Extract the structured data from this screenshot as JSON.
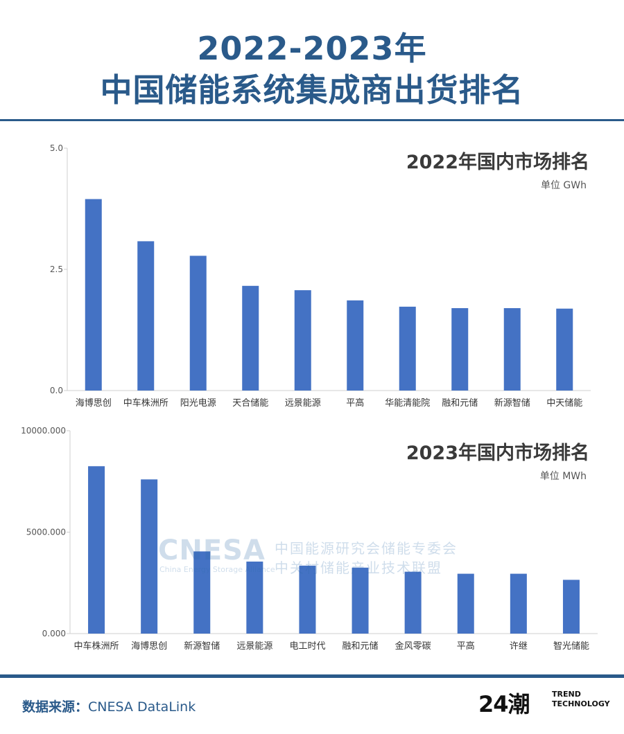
{
  "title": {
    "line1": "2022-2023年",
    "line2": "中国储能系统集成商出货排名"
  },
  "chart_data": [
    {
      "type": "bar",
      "title": "2022年国内市场排名",
      "unit": "单位 GWh",
      "categories": [
        "海博思创",
        "中车株洲所",
        "阳光电源",
        "天合储能",
        "远景能源",
        "平高",
        "华能清能院",
        "融和元储",
        "新源智储",
        "中天储能"
      ],
      "values": [
        3.95,
        3.08,
        2.78,
        2.16,
        2.07,
        1.86,
        1.73,
        1.7,
        1.7,
        1.69
      ],
      "ylim": [
        0,
        5
      ],
      "yticks": [
        "0.0",
        "2.5",
        "5.0"
      ],
      "grid": false,
      "color": "#4472c4"
    },
    {
      "type": "bar",
      "title": "2023年国内市场排名",
      "unit": "单位 MWh",
      "categories": [
        "中车株洲所",
        "海博思创",
        "新源智储",
        "远景能源",
        "电工时代",
        "融和元储",
        "金风零碳",
        "平高",
        "许继",
        "智光储能"
      ],
      "values": [
        8250,
        7600,
        4050,
        3550,
        3350,
        3250,
        3050,
        2950,
        2950,
        2650
      ],
      "ylim": [
        0,
        10000
      ],
      "yticks": [
        "0.000",
        "5000.000",
        "10000.000"
      ],
      "grid": false,
      "color": "#4472c4"
    }
  ],
  "watermark": {
    "brand": "CNESA",
    "subtitle": "China Energy Storage Alliance",
    "cn_line1": "中国能源研究会储能专委会",
    "cn_line2": "中关村储能产业技术联盟"
  },
  "footer": {
    "source_label": "数据来源：",
    "source_value": "CNESA DataLink",
    "logo_number": "24潮",
    "logo_line1": "TREND",
    "logo_line2": "TECHNOLOGY"
  },
  "colors": {
    "title": "#2a5a8a",
    "bar": "#4472c4",
    "rule": "#2a5a8a"
  }
}
